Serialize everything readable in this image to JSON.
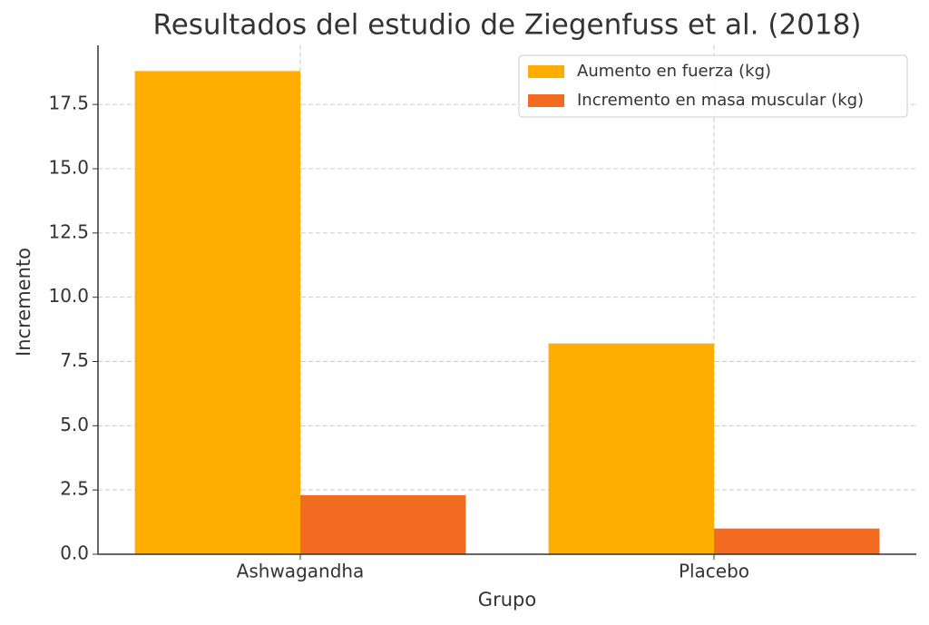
{
  "chart_data": {
    "type": "bar",
    "title": "Resultados del estudio de Ziegenfuss et al. (2018)",
    "x_label": "Grupo",
    "y_label": "Incremento",
    "categories": [
      "Ashwagandha",
      "Placebo"
    ],
    "series": [
      {
        "name": "Aumento en fuerza (kg)",
        "color": "#ffae00",
        "values": [
          18.8,
          8.2
        ]
      },
      {
        "name": "Incremento en masa muscular (kg)",
        "color": "#f26b21",
        "values": [
          2.3,
          1.0
        ]
      }
    ],
    "ylim": [
      0,
      19.8
    ],
    "yticks": [
      {
        "value": 0,
        "label": "0.0"
      },
      2.5,
      {
        "value": 5,
        "label": "5.0"
      },
      7.5,
      {
        "value": 10,
        "label": "10.0"
      },
      12.5,
      {
        "value": 15,
        "label": "15.0"
      },
      17.5
    ],
    "grid": true,
    "legend": "upper right"
  }
}
